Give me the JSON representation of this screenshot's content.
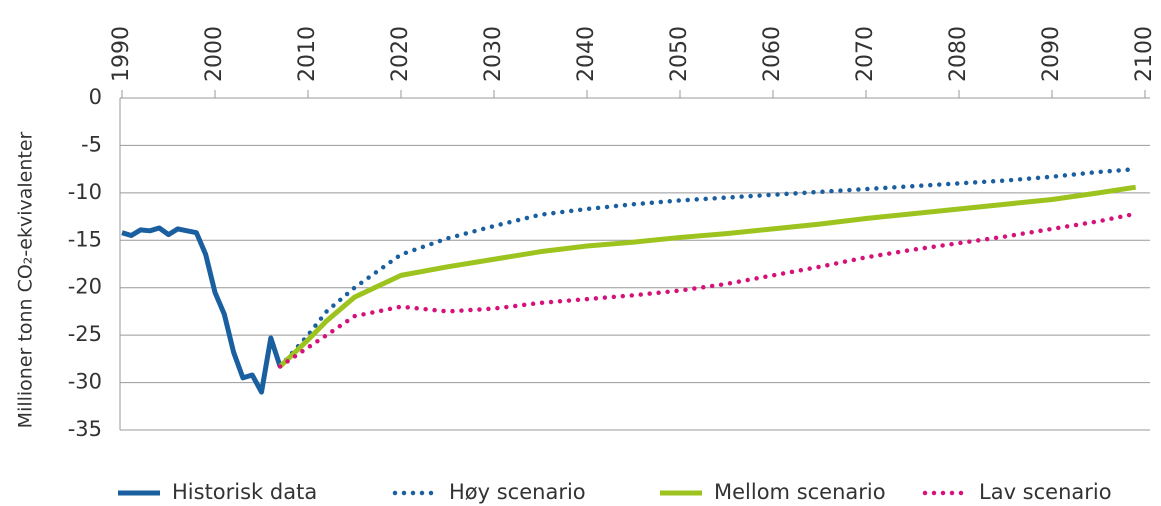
{
  "chart_data": {
    "type": "line",
    "y_label": "Millioner tonn CO₂-ekvivalenter",
    "xlim": [
      1990,
      2100
    ],
    "xticks": [
      1990,
      2000,
      2010,
      2020,
      2030,
      2040,
      2050,
      2060,
      2070,
      2080,
      2090,
      2100
    ],
    "ylim": [
      -35,
      0
    ],
    "yticks": [
      0,
      -5,
      -10,
      -15,
      -20,
      -25,
      -30,
      -35
    ],
    "grid": true,
    "legend": "bottom",
    "series": [
      {
        "name": "Historisk data",
        "color": "#1a5fa0",
        "style": "solid",
        "x": [
          1990,
          1991,
          1992,
          1993,
          1994,
          1995,
          1996,
          1997,
          1998,
          1999,
          2000,
          2001,
          2002,
          2003,
          2004,
          2005,
          2006,
          2007
        ],
        "values": [
          -14.2,
          -14.5,
          -13.9,
          -14.0,
          -13.7,
          -14.4,
          -13.8,
          -14.0,
          -14.2,
          -16.5,
          -20.5,
          -22.8,
          -26.8,
          -29.5,
          -29.2,
          -31.0,
          -25.3,
          -28.3
        ]
      },
      {
        "name": "Høy scenario",
        "color": "#1a5fa0",
        "style": "dotted",
        "x": [
          2007,
          2010,
          2012,
          2015,
          2020,
          2025,
          2030,
          2035,
          2040,
          2045,
          2050,
          2055,
          2060,
          2065,
          2070,
          2075,
          2080,
          2085,
          2090,
          2095,
          2099
        ],
        "values": [
          -28.3,
          -25,
          -22.5,
          -20,
          -16.5,
          -14.8,
          -13.5,
          -12.3,
          -11.7,
          -11.2,
          -10.8,
          -10.5,
          -10.2,
          -9.9,
          -9.6,
          -9.3,
          -9.0,
          -8.7,
          -8.3,
          -7.8,
          -7.5
        ]
      },
      {
        "name": "Mellom scenario",
        "color": "#9dc31f",
        "style": "solid",
        "x": [
          2007,
          2010,
          2012,
          2015,
          2020,
          2025,
          2030,
          2035,
          2040,
          2045,
          2050,
          2055,
          2060,
          2065,
          2070,
          2075,
          2080,
          2085,
          2090,
          2095,
          2099
        ],
        "values": [
          -28.3,
          -25.5,
          -23.5,
          -21,
          -18.7,
          -17.8,
          -17.0,
          -16.2,
          -15.6,
          -15.2,
          -14.7,
          -14.3,
          -13.8,
          -13.3,
          -12.7,
          -12.2,
          -11.7,
          -11.2,
          -10.7,
          -10.0,
          -9.4
        ]
      },
      {
        "name": "Lav scenario",
        "color": "#d6127a",
        "style": "dotted",
        "x": [
          2007,
          2010,
          2012,
          2015,
          2020,
          2025,
          2030,
          2035,
          2040,
          2045,
          2050,
          2055,
          2060,
          2065,
          2070,
          2075,
          2080,
          2085,
          2090,
          2095,
          2099
        ],
        "values": [
          -28.3,
          -26.3,
          -25,
          -23,
          -22,
          -22.5,
          -22.2,
          -21.6,
          -21.2,
          -20.8,
          -20.3,
          -19.6,
          -18.7,
          -17.8,
          -16.8,
          -16.0,
          -15.3,
          -14.6,
          -13.8,
          -13.0,
          -12.2
        ]
      }
    ]
  }
}
